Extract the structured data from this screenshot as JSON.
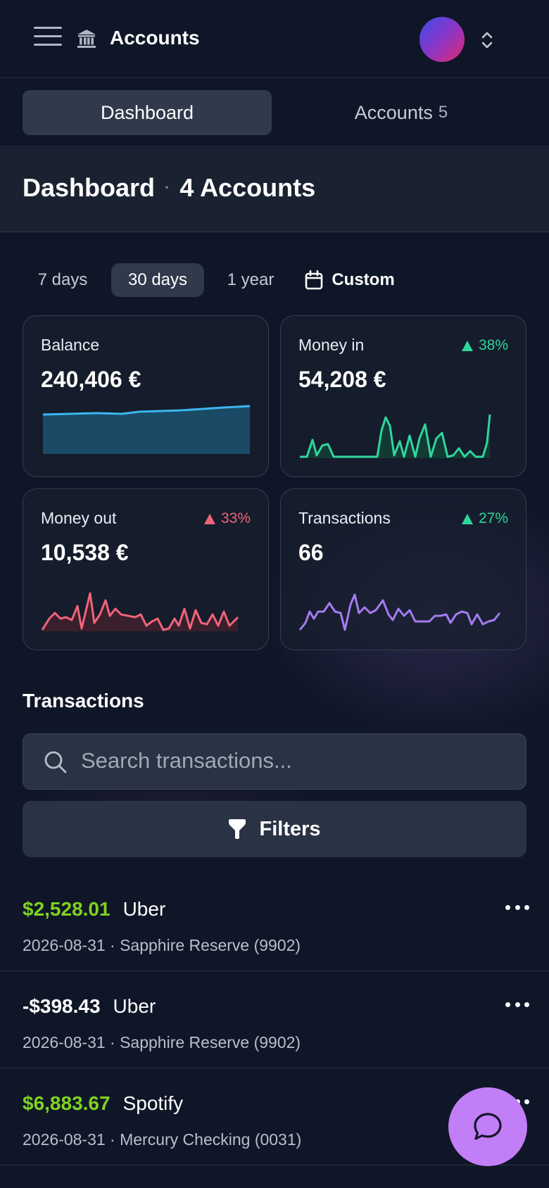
{
  "header": {
    "title": "Accounts",
    "menu_icon": "hamburger-icon",
    "bank_icon": "bank-icon"
  },
  "tabs": [
    {
      "label": "Dashboard",
      "active": true
    },
    {
      "label": "Accounts",
      "count": "5",
      "active": false
    }
  ],
  "page_header": {
    "title": "Dashboard",
    "separator": "·",
    "subtitle": "4 Accounts"
  },
  "ranges": [
    {
      "label": "7 days",
      "active": false
    },
    {
      "label": "30 days",
      "active": true
    },
    {
      "label": "1 year",
      "active": false
    },
    {
      "label": "Custom",
      "active": false,
      "icon": "calendar-icon"
    }
  ],
  "cards": [
    {
      "label": "Balance",
      "value": "240,406 €",
      "delta": "",
      "color": "#3ab7f0",
      "fill": "#1b4a66"
    },
    {
      "label": "Money in",
      "value": "54,208 €",
      "delta": "38%",
      "delta_color": "#2fd69c",
      "color": "#2fd69c",
      "fill": "#123a35"
    },
    {
      "label": "Money out",
      "value": "10,538 €",
      "delta": "33%",
      "delta_color": "#f0647a",
      "color": "#f0647a",
      "fill": "#3a1f2d"
    },
    {
      "label": "Transactions",
      "value": "66",
      "delta": "27%",
      "delta_color": "#2fd69c",
      "color": "#a37cf0",
      "fill": "none"
    }
  ],
  "transactions_section": {
    "title": "Transactions"
  },
  "search": {
    "placeholder": "Search transactions..."
  },
  "filters": {
    "label": "Filters"
  },
  "transactions": [
    {
      "amount": "$2,528.01",
      "positive": true,
      "merchant": "Uber",
      "meta": "2026-08-31 · Sapphire Reserve (9902)"
    },
    {
      "amount": "-$398.43",
      "positive": false,
      "merchant": "Uber",
      "meta": "2026-08-31 · Sapphire Reserve (9902)"
    },
    {
      "amount": "$6,883.67",
      "positive": true,
      "merchant": "Spotify",
      "meta": "2026-08-31 · Mercury Checking (0031)"
    }
  ],
  "colors": {
    "positive_amount": "#7ed321",
    "negative_amount": "#ffffff",
    "fab": "#c27ef7"
  }
}
